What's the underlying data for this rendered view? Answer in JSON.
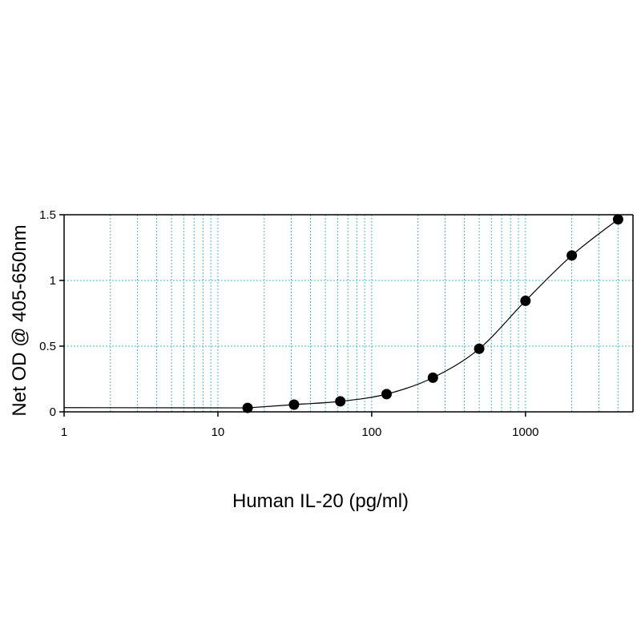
{
  "chart_data": {
    "type": "scatter",
    "xlabel": "Human IL-20 (pg/ml)",
    "ylabel": "Net OD @ 405-650nm",
    "xscale": "log",
    "xlim": [
      1,
      5000
    ],
    "ylim": [
      0,
      1.5
    ],
    "grid": true,
    "x_ticks": [
      1,
      10,
      100,
      1000
    ],
    "x_tick_labels": [
      "1",
      "10",
      "100",
      "1000"
    ],
    "y_ticks": [
      0,
      0.5,
      1,
      1.5
    ],
    "y_tick_labels": [
      "0",
      "0.5",
      "1",
      "1.5"
    ],
    "series": [
      {
        "x": [
          15.6,
          31.25,
          62.5,
          125,
          250,
          500,
          1000,
          2000,
          4000
        ],
        "y": [
          0.03,
          0.055,
          0.08,
          0.135,
          0.26,
          0.48,
          0.845,
          1.19,
          1.465
        ],
        "fit_curve": true
      }
    ],
    "colors": {
      "grid": "#4ab4d2",
      "points": "#000000",
      "curve": "#000000"
    }
  }
}
